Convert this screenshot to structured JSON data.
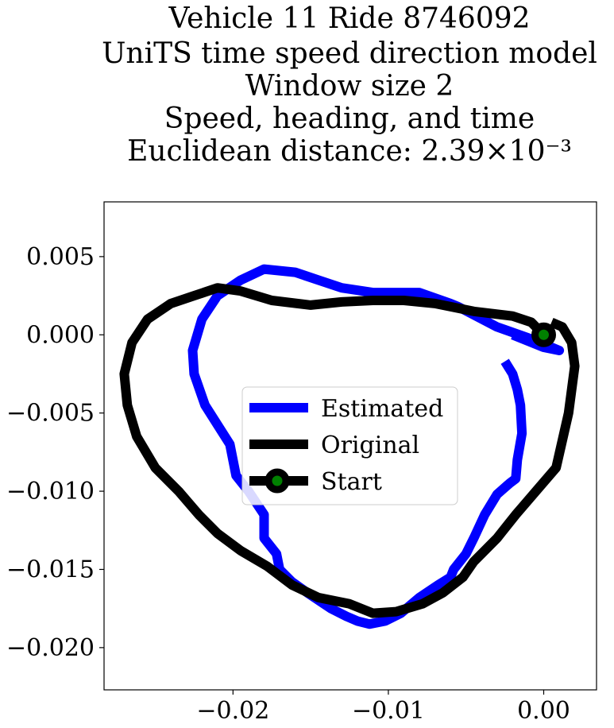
{
  "chart_data": {
    "type": "line",
    "title_lines": [
      "Vehicle 11 Ride 8746092",
      "UniTS time speed direction model",
      "Window size 2",
      "Speed, heading, and time",
      "Euclidean distance: 2.39×10⁻³"
    ],
    "xlabel": "",
    "ylabel": "",
    "xlim": [
      -0.0283,
      0.0034
    ],
    "ylim": [
      -0.0227,
      0.0085
    ],
    "xticks": [
      -0.02,
      -0.01,
      0.0
    ],
    "xtick_labels": [
      "−0.02",
      "−0.01",
      "0.00"
    ],
    "yticks": [
      0.005,
      0.0,
      -0.005,
      -0.01,
      -0.015,
      -0.02
    ],
    "ytick_labels": [
      "0.005",
      "0.000",
      "−0.005",
      "−0.010",
      "−0.015",
      "−0.020"
    ],
    "grid": false,
    "legend_position": "center",
    "series": [
      {
        "name": "Estimated",
        "color": "#0000ff",
        "x": [
          -0.0025,
          -0.002,
          -0.0017,
          -0.0015,
          -0.0014,
          -0.0017,
          -0.0018,
          -0.0022,
          -0.003,
          -0.0038,
          -0.0045,
          -0.005,
          -0.0058,
          -0.006,
          -0.0068,
          -0.008,
          -0.0092,
          -0.0102,
          -0.0112,
          -0.012,
          -0.0127,
          -0.0137,
          -0.0152,
          -0.0162,
          -0.017,
          -0.0172,
          -0.018,
          -0.018,
          -0.019,
          -0.0198,
          -0.0202,
          -0.0218,
          -0.0225,
          -0.0226,
          -0.022,
          -0.021,
          -0.0195,
          -0.018,
          -0.016,
          -0.0145,
          -0.013,
          -0.011,
          -0.0095,
          -0.008,
          -0.006,
          -0.0055,
          -0.003,
          -0.001,
          0.0005,
          0.001,
          0.0,
          -0.002
        ],
        "y": [
          -0.0017,
          -0.0025,
          -0.0035,
          -0.0045,
          -0.0063,
          -0.008,
          -0.0092,
          -0.0095,
          -0.0102,
          -0.0115,
          -0.013,
          -0.014,
          -0.015,
          -0.0155,
          -0.016,
          -0.0168,
          -0.0178,
          -0.0183,
          -0.0185,
          -0.0183,
          -0.018,
          -0.0175,
          -0.0165,
          -0.0158,
          -0.015,
          -0.014,
          -0.013,
          -0.0115,
          -0.01,
          -0.009,
          -0.007,
          -0.0045,
          -0.0025,
          -0.001,
          0.001,
          0.0025,
          0.0035,
          0.0042,
          0.004,
          0.0035,
          0.003,
          0.0027,
          0.0027,
          0.0027,
          0.002,
          0.0018,
          0.0005,
          -0.0002,
          -0.0008,
          -0.001,
          -0.0008,
          0.0
        ]
      },
      {
        "name": "Original",
        "color": "#000000",
        "x": [
          0.0,
          -0.0008,
          -0.002,
          -0.0045,
          -0.007,
          -0.009,
          -0.011,
          -0.013,
          -0.015,
          -0.0175,
          -0.0195,
          -0.021,
          -0.0225,
          -0.024,
          -0.0255,
          -0.0265,
          -0.027,
          -0.0268,
          -0.0262,
          -0.025,
          -0.0235,
          -0.0222,
          -0.021,
          -0.0195,
          -0.0178,
          -0.0162,
          -0.0145,
          -0.0125,
          -0.011,
          -0.0095,
          -0.0078,
          -0.0065,
          -0.0052,
          -0.0045,
          -0.003,
          -0.0018,
          -0.0005,
          0.0008,
          0.0016,
          0.002,
          0.0018,
          0.0012,
          0.0005
        ],
        "y": [
          0.0,
          0.0008,
          0.0012,
          0.0015,
          0.002,
          0.0022,
          0.0022,
          0.0021,
          0.0019,
          0.0022,
          0.0028,
          0.003,
          0.0025,
          0.002,
          0.001,
          -0.0005,
          -0.0025,
          -0.0045,
          -0.0065,
          -0.0085,
          -0.01,
          -0.0115,
          -0.0127,
          -0.0138,
          -0.0148,
          -0.016,
          -0.0168,
          -0.0172,
          -0.0178,
          -0.0177,
          -0.0172,
          -0.0165,
          -0.0155,
          -0.0145,
          -0.013,
          -0.0115,
          -0.01,
          -0.0085,
          -0.005,
          -0.002,
          -0.0005,
          0.0005,
          0.0008
        ]
      }
    ],
    "start_marker": {
      "name": "Start",
      "x": 0.0,
      "y": 0.0,
      "edge_color": "#000000",
      "face_color": "#008000"
    }
  }
}
